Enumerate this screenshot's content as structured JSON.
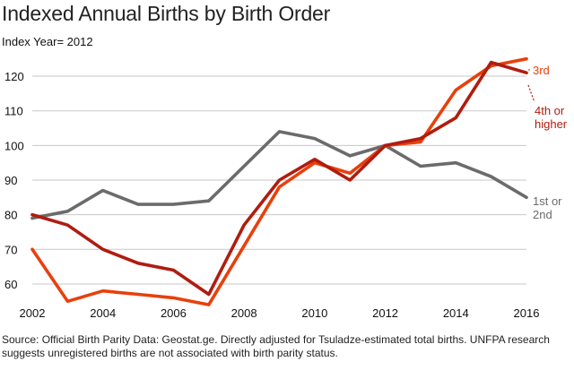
{
  "header": {
    "title": "Indexed Annual Births by Birth Order",
    "subtitle": "Index Year= 2012"
  },
  "footer": {
    "source": "Source: Official Birth Parity Data: Geostat.ge. Directly adjusted for Tsuladze-estimated total births. UNFPA research suggests unregistered births are not associated with birth parity status."
  },
  "chart_data": {
    "type": "line",
    "title": "Indexed Annual Births by Birth Order",
    "subtitle": "Index Year= 2012",
    "x": [
      2002,
      2003,
      2004,
      2005,
      2006,
      2007,
      2008,
      2009,
      2010,
      2011,
      2012,
      2013,
      2014,
      2015,
      2016
    ],
    "xticks": [
      2002,
      2004,
      2006,
      2008,
      2010,
      2012,
      2014,
      2016
    ],
    "yticks": [
      60,
      70,
      80,
      90,
      100,
      110,
      120
    ],
    "xlim": [
      2002,
      2016
    ],
    "ylim": [
      53,
      127
    ],
    "grid": "horizontal",
    "legend": "labels at line ends (right)",
    "series": [
      {
        "name": "1st or 2nd",
        "color": "#6b6b6b",
        "values": [
          79,
          81,
          87,
          83,
          83,
          84,
          94,
          104,
          102,
          97,
          100,
          94,
          95,
          91,
          85
        ]
      },
      {
        "name": "3rd",
        "color": "#e8400c",
        "values": [
          70,
          55,
          58,
          57,
          56,
          54,
          71,
          88,
          95,
          92,
          100,
          101,
          116,
          123,
          125
        ]
      },
      {
        "name": "4th or higher",
        "color": "#b01c0f",
        "values": [
          80,
          77,
          70,
          66,
          64,
          57,
          77,
          90,
          96,
          90,
          100,
          102,
          108,
          124,
          121
        ]
      }
    ],
    "series_labels": [
      {
        "lines": [
          "1st or",
          "2nd"
        ]
      },
      {
        "lines": [
          "3rd"
        ]
      },
      {
        "lines": [
          "4th or",
          "higher"
        ]
      }
    ]
  }
}
